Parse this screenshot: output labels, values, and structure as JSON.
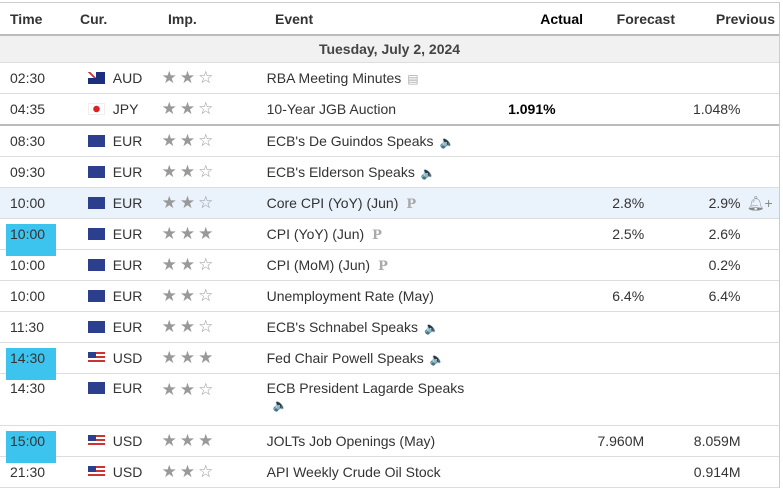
{
  "headers": {
    "time": "Time",
    "cur": "Cur.",
    "imp": "Imp.",
    "event": "Event",
    "actual": "Actual",
    "forecast": "Forecast",
    "previous": "Previous"
  },
  "date": "Tuesday, July 2, 2024",
  "rows": [
    {
      "time": "02:30",
      "cur": "AUD",
      "stars": 2,
      "event": "RBA Meeting Minutes",
      "icon": "document-icon",
      "actual": "",
      "forecast": "",
      "previous": ""
    },
    {
      "time": "04:35",
      "cur": "JPY",
      "stars": 2,
      "event": "10-Year JGB Auction",
      "icon": "",
      "actual": "1.091%",
      "forecast": "",
      "previous": "1.048%"
    },
    {
      "time": "08:30",
      "cur": "EUR",
      "stars": 2,
      "event": "ECB's De Guindos Speaks",
      "icon": "speaker-icon",
      "actual": "",
      "forecast": "",
      "previous": ""
    },
    {
      "time": "09:30",
      "cur": "EUR",
      "stars": 2,
      "event": "ECB's Elderson Speaks",
      "icon": "speaker-icon",
      "actual": "",
      "forecast": "",
      "previous": ""
    },
    {
      "time": "10:00",
      "cur": "EUR",
      "stars": 2,
      "event": "Core CPI (YoY) (Jun)",
      "icon": "preliminary-icon",
      "actual": "",
      "forecast": "2.8%",
      "previous": "2.9%"
    },
    {
      "time": "10:00",
      "cur": "EUR",
      "stars": 3,
      "event": "CPI (YoY) (Jun)",
      "icon": "preliminary-icon",
      "actual": "",
      "forecast": "2.5%",
      "previous": "2.6%"
    },
    {
      "time": "10:00",
      "cur": "EUR",
      "stars": 2,
      "event": "CPI (MoM) (Jun)",
      "icon": "preliminary-icon",
      "actual": "",
      "forecast": "",
      "previous": "0.2%"
    },
    {
      "time": "10:00",
      "cur": "EUR",
      "stars": 2,
      "event": "Unemployment Rate (May)",
      "icon": "",
      "actual": "",
      "forecast": "6.4%",
      "previous": "6.4%"
    },
    {
      "time": "11:30",
      "cur": "EUR",
      "stars": 2,
      "event": "ECB's Schnabel Speaks",
      "icon": "speaker-icon",
      "actual": "",
      "forecast": "",
      "previous": ""
    },
    {
      "time": "14:30",
      "cur": "USD",
      "stars": 3,
      "event": "Fed Chair Powell Speaks",
      "icon": "speaker-icon",
      "actual": "",
      "forecast": "",
      "previous": ""
    },
    {
      "time": "14:30",
      "cur": "EUR",
      "stars": 2,
      "event": "ECB President Lagarde Speaks",
      "icon": "speaker-icon",
      "actual": "",
      "forecast": "",
      "previous": ""
    },
    {
      "time": "15:00",
      "cur": "USD",
      "stars": 3,
      "event": "JOLTs Job Openings (May)",
      "icon": "",
      "actual": "",
      "forecast": "7.960M",
      "previous": "8.059M"
    },
    {
      "time": "21:30",
      "cur": "USD",
      "stars": 2,
      "event": "API Weekly Crude Oil Stock",
      "icon": "",
      "actual": "",
      "forecast": "",
      "previous": "0.914M"
    }
  ],
  "highlight_color": "#3cc4ef"
}
